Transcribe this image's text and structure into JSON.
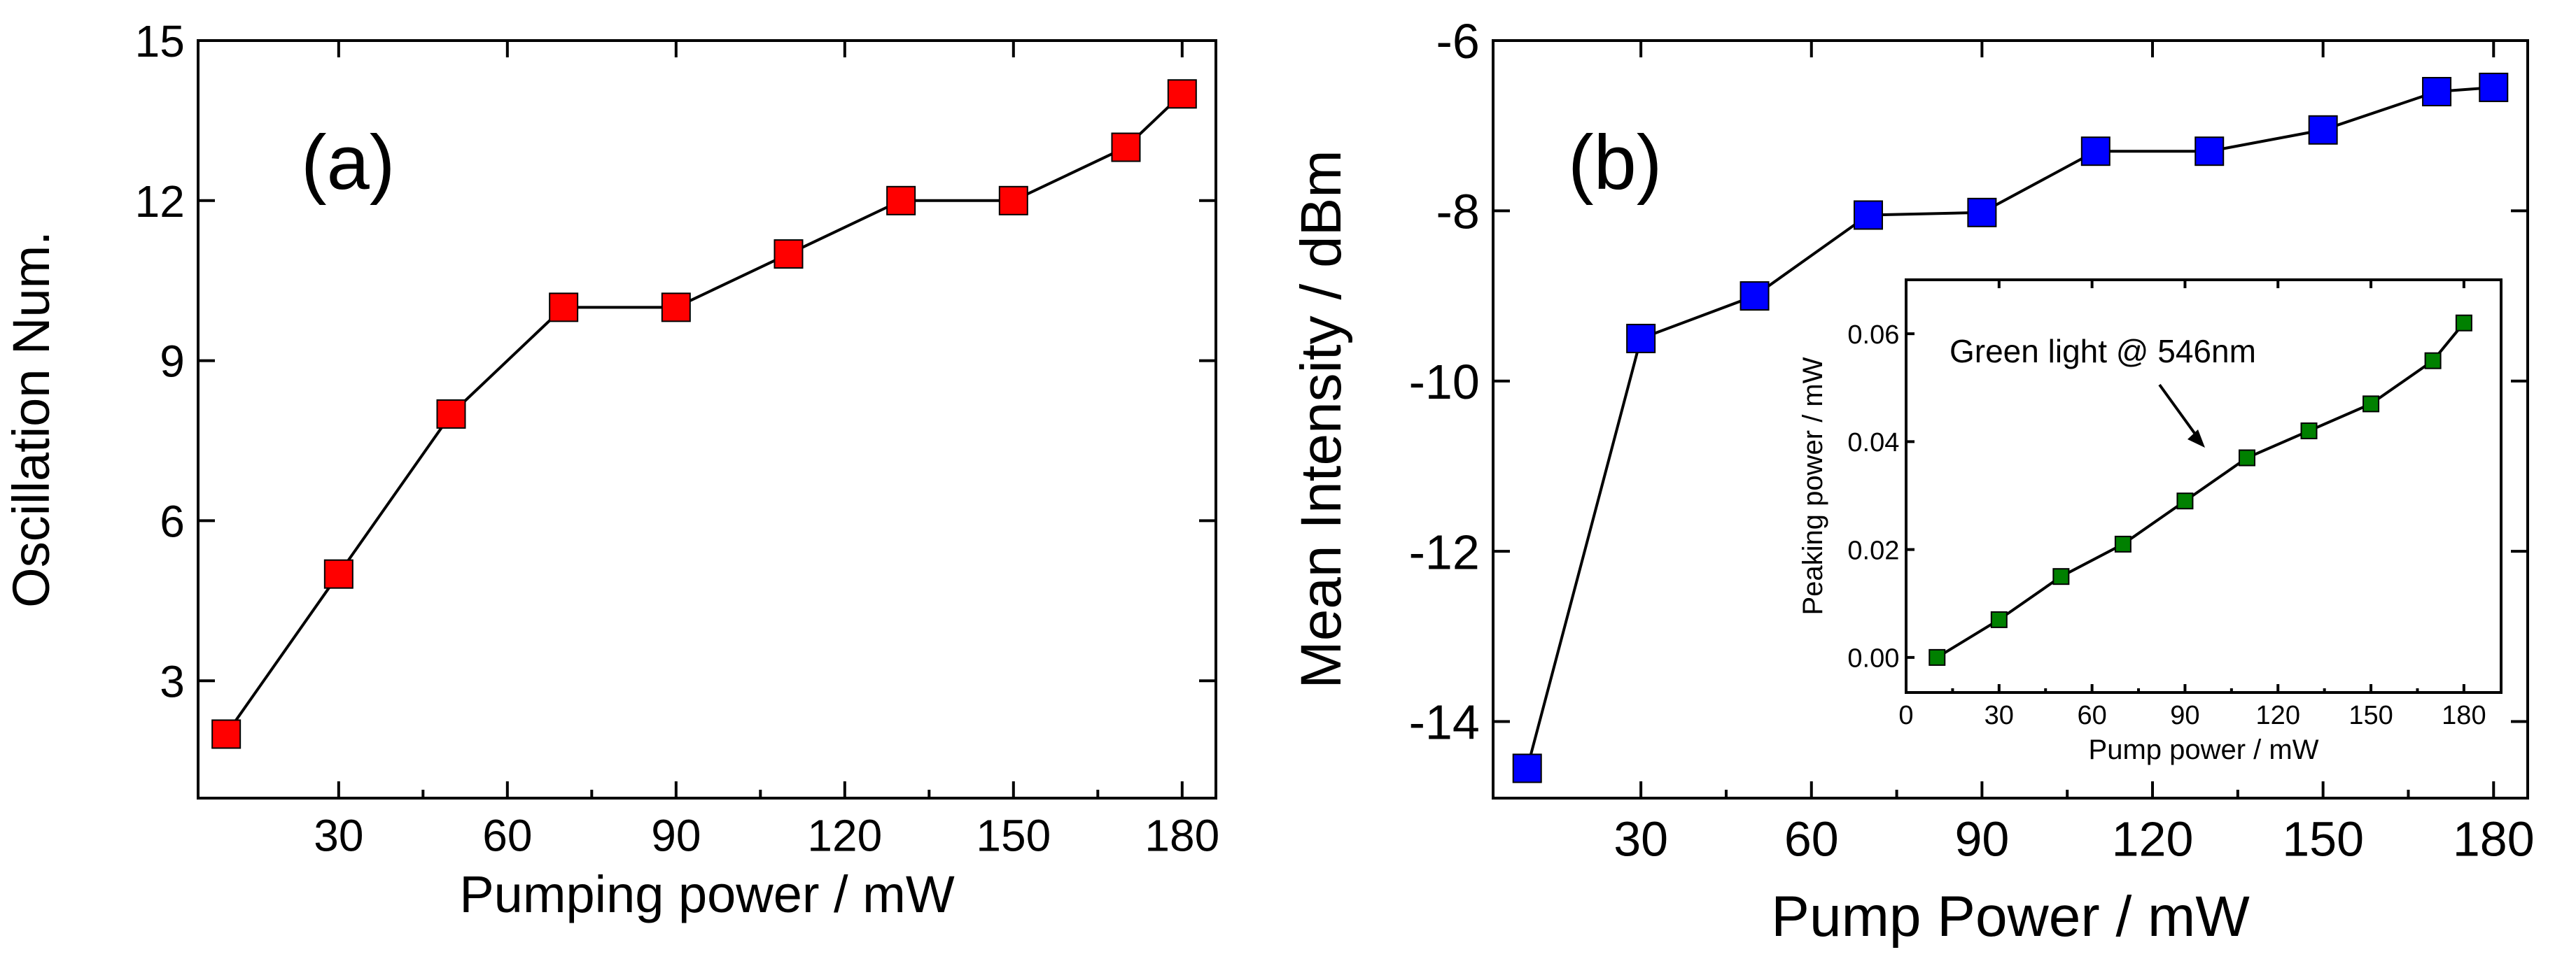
{
  "chart_data": [
    {
      "type": "line",
      "panel_label": "(a)",
      "xlabel": "Pumping power / mW",
      "ylabel": "Oscillation Num.",
      "xlim": [
        5,
        186
      ],
      "ylim": [
        0.8,
        15
      ],
      "xticks": [
        30,
        60,
        90,
        120,
        150,
        180
      ],
      "yticks": [
        3,
        6,
        9,
        12,
        15
      ],
      "marker": "square",
      "color": "#ff0000",
      "series": [
        {
          "name": "Oscillation Num.",
          "x": [
            10,
            30,
            50,
            70,
            90,
            110,
            130,
            150,
            170,
            180
          ],
          "y": [
            2,
            5,
            8,
            10,
            10,
            11,
            12,
            12,
            13,
            14
          ]
        }
      ]
    },
    {
      "type": "line",
      "panel_label": "(b)",
      "xlabel": "Pump Power / mW",
      "ylabel": "Mean Intensity / dBm",
      "xlim": [
        4,
        186
      ],
      "ylim": [
        -14.9,
        -6
      ],
      "xticks": [
        30,
        60,
        90,
        120,
        150,
        180
      ],
      "yticks": [
        -14,
        -12,
        -10,
        -8,
        -6
      ],
      "marker": "square",
      "color": "#0000ff",
      "series": [
        {
          "name": "Mean Intensity",
          "x": [
            10,
            30,
            50,
            70,
            90,
            110,
            130,
            150,
            170,
            180
          ],
          "y": [
            -14.55,
            -9.5,
            -9.0,
            -8.05,
            -8.02,
            -7.3,
            -7.3,
            -7.05,
            -6.6,
            -6.55
          ]
        }
      ]
    },
    {
      "type": "line",
      "panel_label": "inset",
      "annotation": "Green light @ 546nm",
      "xlabel": "Pump power / mW",
      "ylabel": "Peaking power / mW",
      "xlim": [
        0,
        192
      ],
      "ylim": [
        -0.0065,
        0.07
      ],
      "xticks": [
        0,
        30,
        60,
        90,
        120,
        150,
        180
      ],
      "yticks": [
        0.0,
        0.02,
        0.04,
        0.06
      ],
      "xtick_labels": [
        "0",
        "30",
        "60",
        "90",
        "120",
        "150",
        "180"
      ],
      "ytick_labels": [
        "0.00",
        "0.02",
        "0.04",
        "0.06"
      ],
      "marker": "square",
      "color": "#008000",
      "series": [
        {
          "name": "Peaking power",
          "x": [
            10,
            30,
            50,
            70,
            90,
            110,
            130,
            150,
            170,
            180
          ],
          "y": [
            0.0,
            0.007,
            0.015,
            0.021,
            0.029,
            0.037,
            0.042,
            0.047,
            0.055,
            0.062
          ]
        }
      ]
    }
  ]
}
